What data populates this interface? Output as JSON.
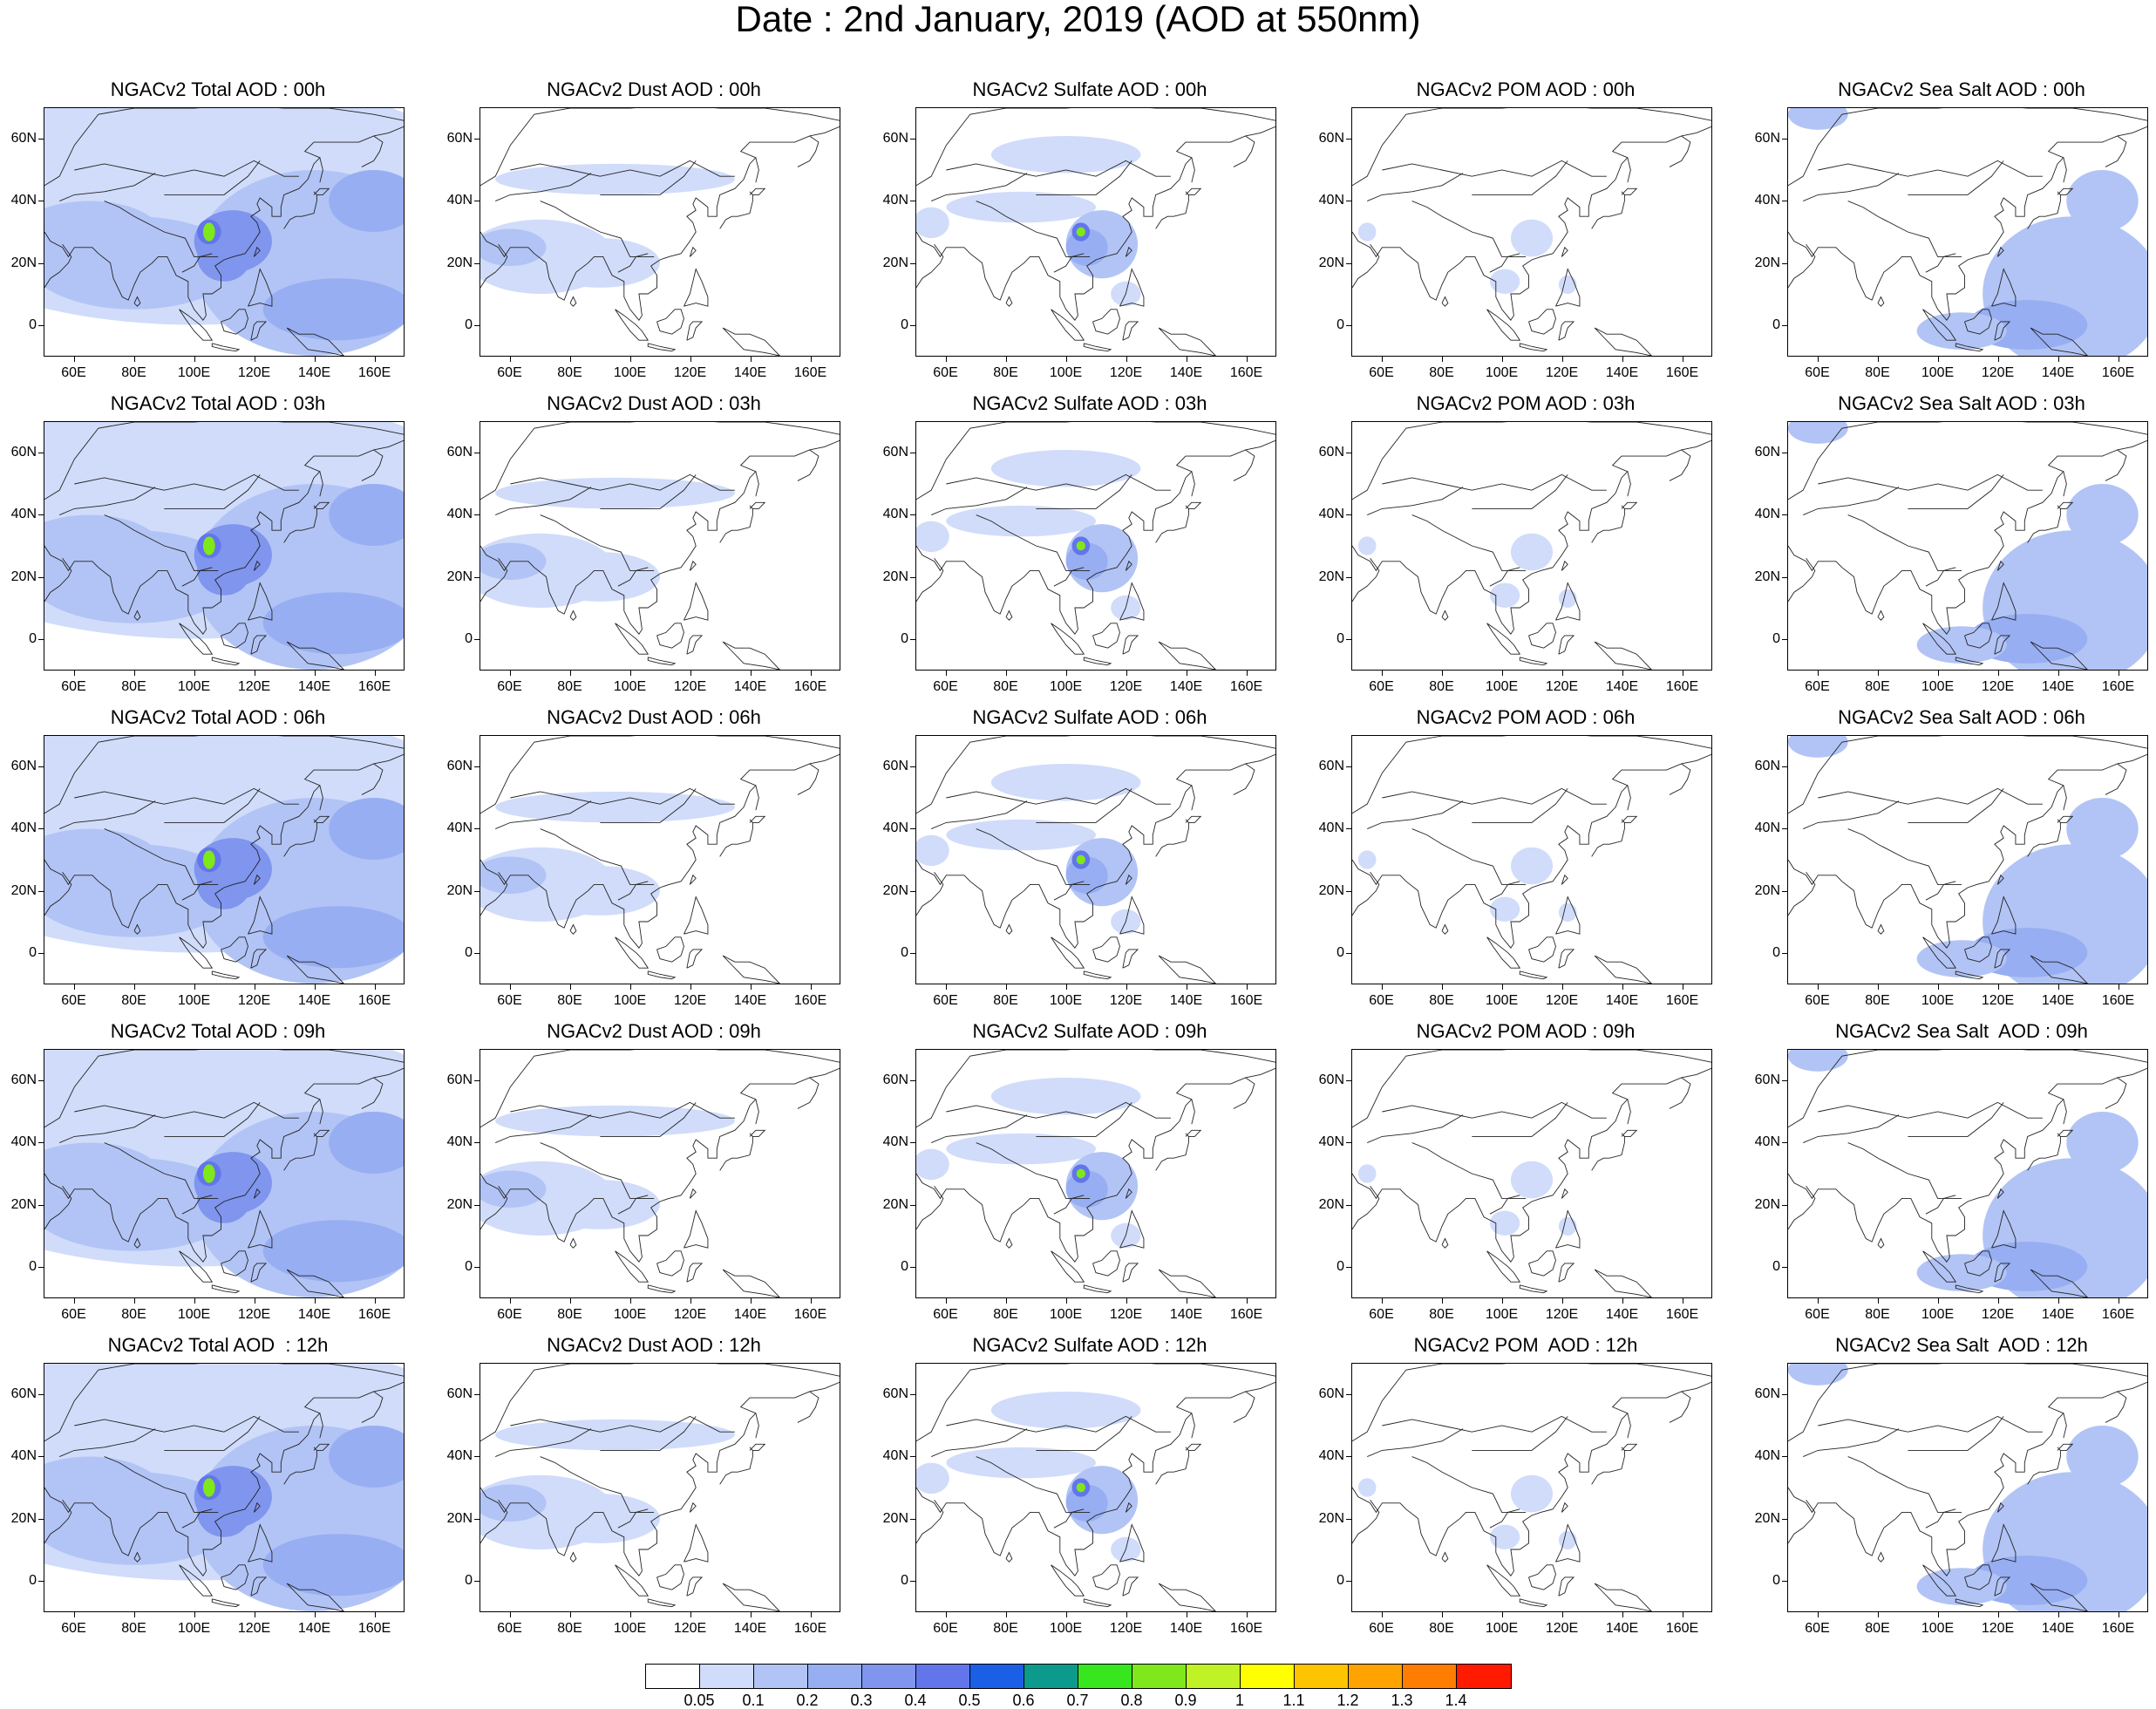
{
  "title": "Date : 2nd January, 2019 (AOD at 550nm)",
  "panels": [
    [
      "NGACv2 Total AOD : 00h",
      "NGACv2 Dust AOD : 00h",
      "NGACv2 Sulfate AOD : 00h",
      "NGACv2 POM AOD : 00h",
      "NGACv2 Sea Salt AOD : 00h"
    ],
    [
      "NGACv2 Total AOD : 03h",
      "NGACv2 Dust AOD : 03h",
      "NGACv2 Sulfate AOD : 03h",
      "NGACv2 POM AOD : 03h",
      "NGACv2 Sea Salt AOD : 03h"
    ],
    [
      "NGACv2 Total AOD : 06h",
      "NGACv2 Dust AOD : 06h",
      "NGACv2 Sulfate AOD : 06h",
      "NGACv2 POM AOD : 06h",
      "NGACv2 Sea Salt AOD : 06h"
    ],
    [
      "NGACv2 Total AOD : 09h",
      "NGACv2 Dust AOD : 09h",
      "NGACv2 Sulfate AOD : 09h",
      "NGACv2 POM AOD : 09h",
      "NGACv2 Sea Salt  AOD : 09h"
    ],
    [
      "NGACv2 Total AOD  : 12h",
      "NGACv2 Dust AOD : 12h",
      "NGACv2 Sulfate AOD : 12h",
      "NGACv2 POM  AOD : 12h",
      "NGACv2 Sea Salt  AOD : 12h"
    ]
  ],
  "panel_types": [
    "total",
    "dust",
    "sulfate",
    "pom",
    "seasalt"
  ],
  "lat_labels": [
    "60N",
    "40N",
    "20N",
    "0"
  ],
  "lat_values": [
    60,
    40,
    20,
    0
  ],
  "lon_labels": [
    "60E",
    "80E",
    "100E",
    "120E",
    "140E",
    "160E"
  ],
  "lon_values": [
    60,
    80,
    100,
    120,
    140,
    160
  ],
  "map_extent": {
    "lon": [
      50,
      170
    ],
    "lat": [
      -10,
      70
    ]
  },
  "colorbar": {
    "labels": [
      "0.05",
      "0.1",
      "0.2",
      "0.3",
      "0.4",
      "0.5",
      "0.6",
      "0.7",
      "0.8",
      "0.9",
      "1",
      "1.1",
      "1.2",
      "1.3",
      "1.4"
    ],
    "colors": [
      "#ffffff",
      "#d0dcfa",
      "#b2c4f5",
      "#98aef2",
      "#7f95ee",
      "#6375ea",
      "#1a5fe6",
      "#0c9a8c",
      "#37e61e",
      "#7fe81a",
      "#c0f226",
      "#ffff00",
      "#ffc400",
      "#ffa300",
      "#ff7d00",
      "#ff1a00"
    ]
  }
}
